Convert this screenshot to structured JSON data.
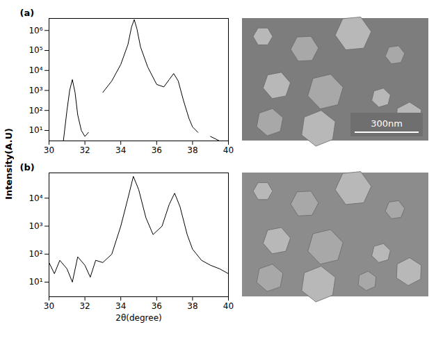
{
  "chart_data": [
    {
      "type": "line",
      "title": "(a)",
      "log": "y",
      "color": "#000000",
      "xlim": [
        30,
        40
      ],
      "xticks": [
        30,
        32,
        34,
        36,
        38,
        40
      ],
      "ylim": [
        3,
        4000000
      ],
      "yticks": [
        {
          "value": 10,
          "label": "10¹"
        },
        {
          "value": 100,
          "label": "10²"
        },
        {
          "value": 1000,
          "label": "10³"
        },
        {
          "value": 10000,
          "label": "10⁴"
        },
        {
          "value": 100000,
          "label": "10⁵"
        },
        {
          "value": 1000000,
          "label": "10⁶"
        }
      ],
      "x": [
        30.8,
        31.0,
        31.15,
        31.3,
        31.45,
        31.6,
        31.8,
        32.0,
        32.2,
        32.4,
        33.0,
        33.5,
        34.0,
        34.4,
        34.6,
        34.75,
        34.9,
        35.1,
        35.5,
        36.0,
        36.4,
        36.7,
        36.95,
        37.2,
        37.5,
        37.8,
        38.0,
        38.3,
        38.6,
        39.0,
        39.5,
        40.0
      ],
      "values": [
        3,
        100,
        1000,
        3500,
        800,
        60,
        10,
        5,
        8,
        null,
        800,
        3000,
        20000,
        200000,
        1500000,
        3500000,
        1200000,
        150000,
        15000,
        2000,
        1500,
        3500,
        7000,
        3000,
        300,
        40,
        15,
        8,
        null,
        5,
        3,
        null
      ]
    },
    {
      "type": "line",
      "title": "(b)",
      "log": "y",
      "color": "#000000",
      "xlabel": "2θ(degree)",
      "xlim": [
        30,
        40
      ],
      "xticks": [
        30,
        32,
        34,
        36,
        38,
        40
      ],
      "ylim": [
        3,
        80000
      ],
      "yticks": [
        {
          "value": 10,
          "label": "10¹"
        },
        {
          "value": 100,
          "label": "10²"
        },
        {
          "value": 1000,
          "label": "10³"
        },
        {
          "value": 10000,
          "label": "10⁴"
        }
      ],
      "x": [
        30.0,
        30.3,
        30.6,
        31.0,
        31.3,
        31.6,
        32.0,
        32.3,
        32.6,
        33.0,
        33.5,
        34.0,
        34.4,
        34.7,
        35.0,
        35.4,
        35.8,
        36.3,
        36.7,
        37.0,
        37.3,
        37.7,
        38.0,
        38.5,
        39.0,
        39.5,
        40.0
      ],
      "values": [
        50,
        20,
        60,
        30,
        10,
        80,
        40,
        15,
        60,
        50,
        100,
        1000,
        10000,
        60000,
        20000,
        2000,
        500,
        1000,
        6000,
        15000,
        5000,
        500,
        150,
        60,
        40,
        30,
        20
      ]
    }
  ],
  "ylabel": "Intensity(A.U)",
  "sem_images": {
    "scale_bar": "300nm"
  }
}
